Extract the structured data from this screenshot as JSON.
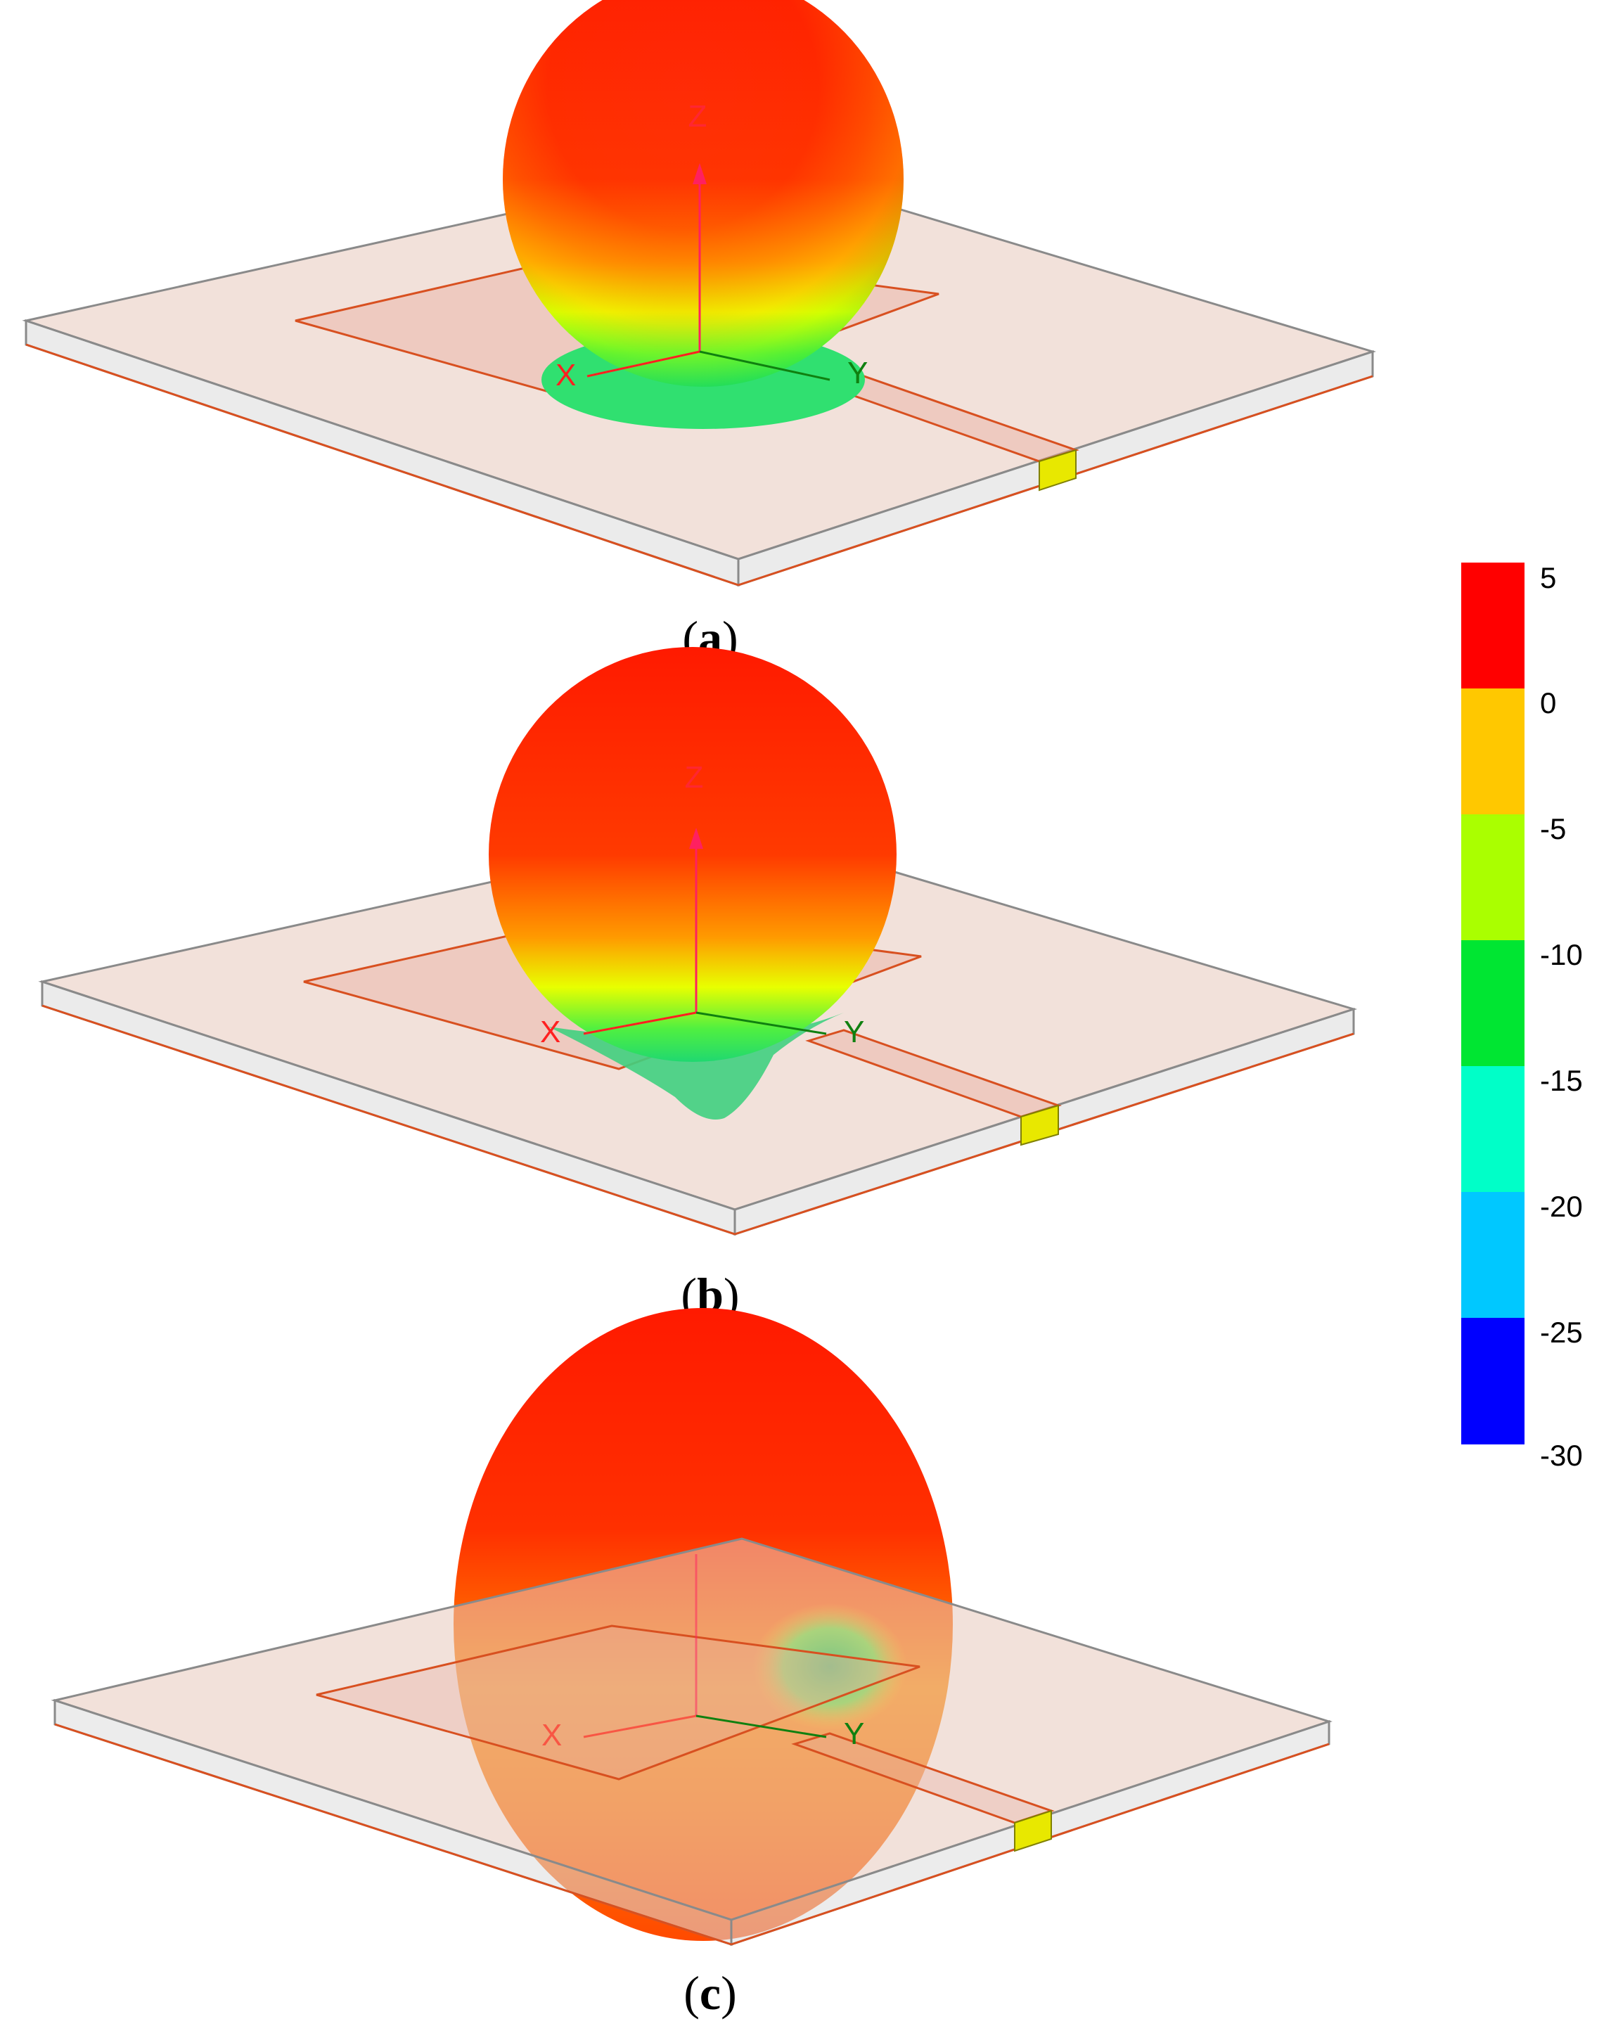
{
  "panels": [
    {
      "id": "a",
      "label": "a"
    },
    {
      "id": "b",
      "label": "b"
    },
    {
      "id": "c",
      "label": "c"
    }
  ],
  "axes": {
    "x": "X",
    "y": "Y",
    "z": "Z"
  },
  "colorbar": {
    "ticks": [
      "5",
      "0",
      "-5",
      "-10",
      "-15",
      "-20",
      "-25",
      "-30"
    ],
    "bands": [
      "#ff0000",
      "#ffc800",
      "#aaff00",
      "#00e632",
      "#00ffc8",
      "#00c8ff",
      "#0000ff"
    ]
  },
  "colors": {
    "substrate_fill": "#e8c8bc",
    "substrate_edge": "#8a8a8a",
    "patch_edge": "#d85020",
    "port": "#e8e800",
    "axis_x": "#ff2020",
    "axis_y": "#108010",
    "axis_z": "#ff2060"
  }
}
